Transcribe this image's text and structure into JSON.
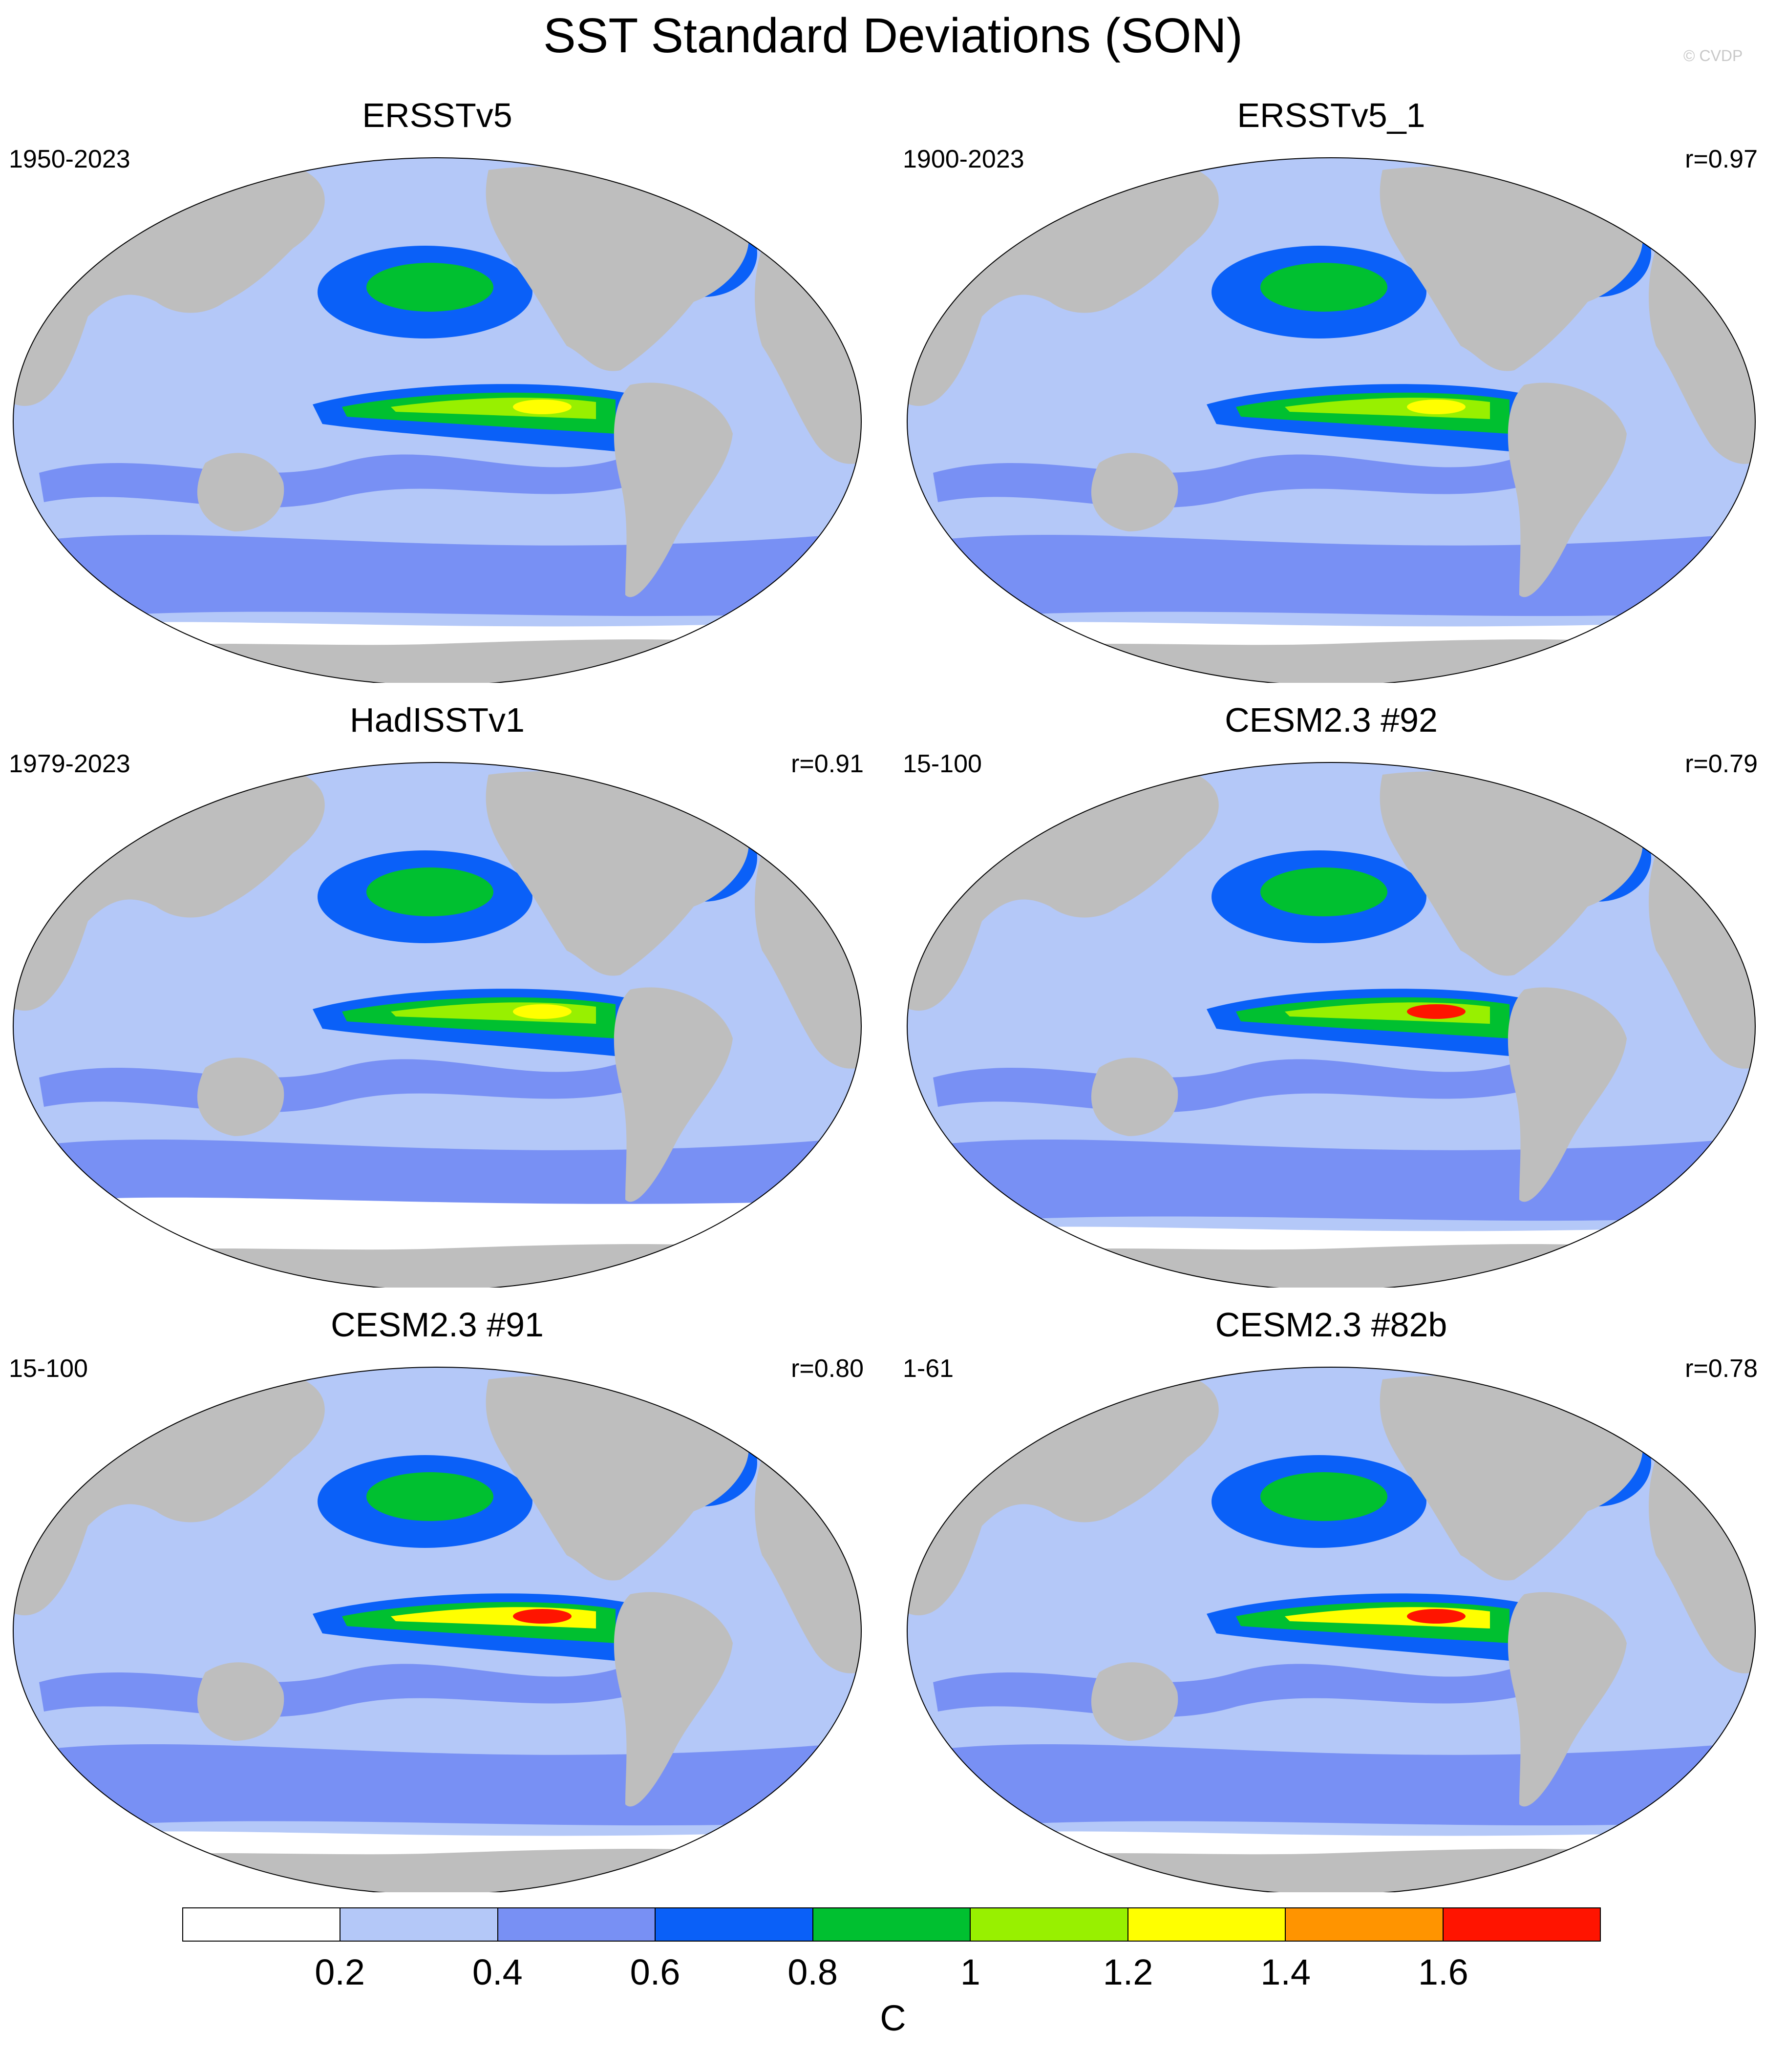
{
  "title": "SST Standard Deviations (SON)",
  "watermark": "© CVDP",
  "panels": [
    {
      "title": "ERSSTv5",
      "period": "1950-2023",
      "r": ""
    },
    {
      "title": "ERSSTv5_1",
      "period": "1900-2023",
      "r": "r=0.97"
    },
    {
      "title": "HadISSTv1",
      "period": "1979-2023",
      "r": "r=0.91"
    },
    {
      "title": "CESM2.3 #92",
      "period": "15-100",
      "r": "r=0.79"
    },
    {
      "title": "CESM2.3 #91",
      "period": "15-100",
      "r": "r=0.80"
    },
    {
      "title": "CESM2.3 #82b",
      "period": "1-61",
      "r": "r=0.78"
    }
  ],
  "colorbar": {
    "colors": [
      "#ffffff",
      "#b4c8f8",
      "#7890f4",
      "#0a60f8",
      "#00c030",
      "#98f000",
      "#ffff00",
      "#ff9400",
      "#ff1400"
    ],
    "ticks": [
      "0.2",
      "0.4",
      "0.6",
      "0.8",
      "1",
      "1.2",
      "1.4",
      "1.6"
    ],
    "unit": "C"
  },
  "colors": {
    "land": "#bebebe",
    "ocean_low": "#b4c8f8",
    "ocean_mid": "#7890f4",
    "ocean_high": "#0a60f8"
  }
}
